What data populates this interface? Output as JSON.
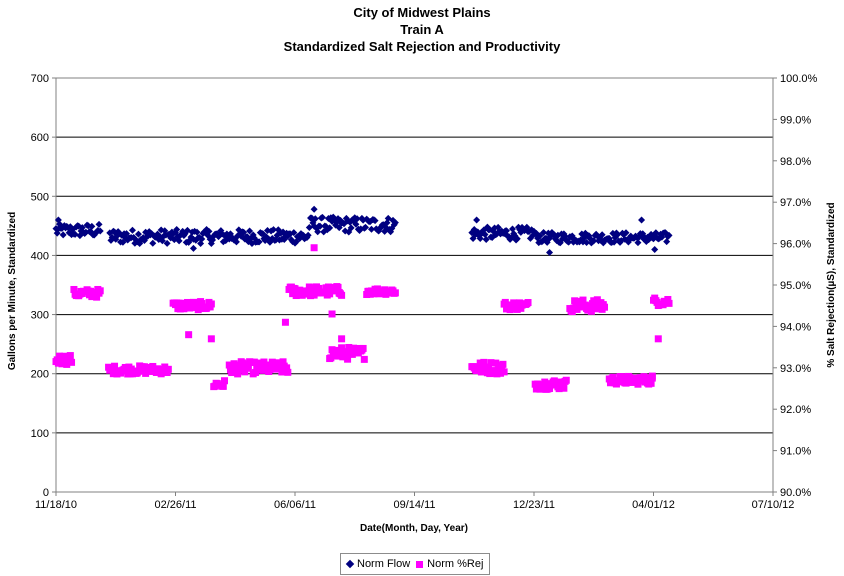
{
  "chart_data": {
    "type": "scatter",
    "title_lines": [
      "City of Midwest Plains",
      "Train A",
      "Standardized Salt Rejection and Productivity"
    ],
    "xlabel": "Date(Month, Day, Year)",
    "ylabel": "Gallons per Minute, Standardized",
    "y2label": "% Salt Rejection(µS), Standardized",
    "x_ticks": [
      "11/18/10",
      "02/26/11",
      "06/06/11",
      "09/14/11",
      "12/23/11",
      "04/01/12",
      "07/10/12"
    ],
    "xlim": [
      "2010-11-18",
      "2012-07-10"
    ],
    "y_ticks": [
      "0",
      "100",
      "200",
      "300",
      "400",
      "500",
      "600",
      "700"
    ],
    "ylim": [
      0,
      700
    ],
    "y2_ticks": [
      "90.0%",
      "91.0%",
      "92.0%",
      "93.0%",
      "94.0%",
      "95.0%",
      "96.0%",
      "97.0%",
      "98.0%",
      "99.0%",
      "100.0%"
    ],
    "y2lim": [
      90,
      100
    ],
    "grid": "horizontal",
    "legend_position": "bottom",
    "series": [
      {
        "name": "Norm Flow",
        "axis": "left",
        "marker": "diamond",
        "color": "#000080",
        "segments": [
          {
            "start": "2010-11-18",
            "end": "2010-12-25",
            "mean": 442,
            "amplitude": 11
          },
          {
            "start": "2011-01-02",
            "end": "2011-06-17",
            "mean": 432,
            "amplitude": 12
          },
          {
            "start": "2011-06-18",
            "end": "2011-08-29",
            "mean": 452,
            "amplitude": 13
          },
          {
            "start": "2011-11-01",
            "end": "2011-12-24",
            "mean": 437,
            "amplitude": 11
          },
          {
            "start": "2011-12-25",
            "end": "2012-04-14",
            "mean": 430,
            "amplitude": 9
          }
        ],
        "values": [
          {
            "x": "2010-11-20",
            "y": 460
          },
          {
            "x": "2011-03-13",
            "y": 412
          },
          {
            "x": "2011-06-22",
            "y": 478
          },
          {
            "x": "2011-11-05",
            "y": 460
          },
          {
            "x": "2012-01-05",
            "y": 405
          },
          {
            "x": "2012-03-22",
            "y": 460
          },
          {
            "x": "2012-04-02",
            "y": 410
          }
        ]
      },
      {
        "name": "Norm %Rej",
        "axis": "right",
        "marker": "square",
        "color": "#ff00ff",
        "segments": [
          {
            "start": "2010-11-18",
            "end": "2010-12-01",
            "mean": 93.2,
            "amplitude": 0.12
          },
          {
            "start": "2010-12-03",
            "end": "2010-12-25",
            "mean": 94.8,
            "amplitude": 0.1
          },
          {
            "start": "2011-01-01",
            "end": "2011-02-20",
            "mean": 92.95,
            "amplitude": 0.1
          },
          {
            "start": "2011-02-24",
            "end": "2011-03-28",
            "mean": 94.5,
            "amplitude": 0.1
          },
          {
            "start": "2011-03-30",
            "end": "2011-04-08",
            "mean": 92.6,
            "amplitude": 0.1
          },
          {
            "start": "2011-04-12",
            "end": "2011-05-31",
            "mean": 93.0,
            "amplitude": 0.15
          },
          {
            "start": "2011-06-01",
            "end": "2011-07-15",
            "mean": 94.85,
            "amplitude": 0.12
          },
          {
            "start": "2011-07-05",
            "end": "2011-08-03",
            "mean": 93.35,
            "amplitude": 0.15
          },
          {
            "start": "2011-08-05",
            "end": "2011-08-29",
            "mean": 94.85,
            "amplitude": 0.08
          },
          {
            "start": "2011-11-01",
            "end": "2011-11-28",
            "mean": 93.0,
            "amplitude": 0.15
          },
          {
            "start": "2011-11-28",
            "end": "2011-12-18",
            "mean": 94.5,
            "amplitude": 0.1
          },
          {
            "start": "2011-12-24",
            "end": "2012-01-19",
            "mean": 92.6,
            "amplitude": 0.12
          },
          {
            "start": "2012-01-22",
            "end": "2012-02-20",
            "mean": 94.5,
            "amplitude": 0.15
          },
          {
            "start": "2012-02-24",
            "end": "2012-03-31",
            "mean": 92.7,
            "amplitude": 0.1
          },
          {
            "start": "2012-04-01",
            "end": "2012-04-14",
            "mean": 94.6,
            "amplitude": 0.1
          }
        ],
        "values": [
          {
            "x": "2011-06-22",
            "y": 95.9
          },
          {
            "x": "2011-05-29",
            "y": 94.1
          },
          {
            "x": "2011-03-09",
            "y": 93.8
          },
          {
            "x": "2011-03-28",
            "y": 93.7
          },
          {
            "x": "2011-07-15",
            "y": 93.7
          },
          {
            "x": "2011-07-13",
            "y": 94.8
          },
          {
            "x": "2011-07-07",
            "y": 94.3
          },
          {
            "x": "2012-04-05",
            "y": 93.7
          },
          {
            "x": "2012-03-31",
            "y": 92.8
          }
        ]
      }
    ]
  }
}
